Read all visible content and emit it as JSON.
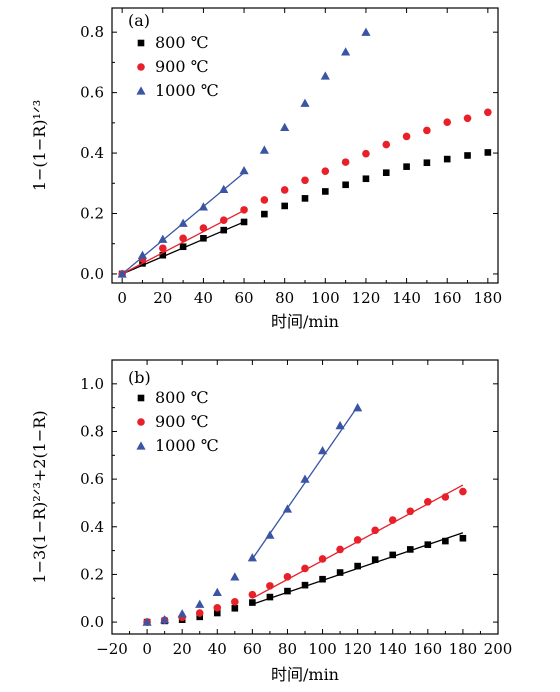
{
  "chart_data": [
    {
      "type": "scatter",
      "panel_label": "(a)",
      "xlabel": "时间/min",
      "ylabel": "1−(1−R)¹ᐟ³",
      "xlim": [
        -5,
        185
      ],
      "ylim": [
        -0.03,
        0.88
      ],
      "xticks": [
        0,
        20,
        40,
        60,
        80,
        100,
        120,
        140,
        160,
        180
      ],
      "yticks": [
        0.0,
        0.2,
        0.4,
        0.6,
        0.8
      ],
      "ytick_labels": [
        "0.0",
        "0.2",
        "0.4",
        "0.6",
        "0.8"
      ],
      "legend_position": "top-left",
      "series": [
        {
          "name": "800 ℃",
          "marker": "square",
          "color": "#000000",
          "x": [
            0,
            10,
            20,
            30,
            40,
            50,
            60,
            70,
            80,
            90,
            100,
            110,
            120,
            130,
            140,
            150,
            160,
            170,
            180
          ],
          "y": [
            0.0,
            0.035,
            0.062,
            0.09,
            0.118,
            0.145,
            0.172,
            0.198,
            0.225,
            0.25,
            0.273,
            0.295,
            0.315,
            0.335,
            0.355,
            0.368,
            0.38,
            0.392,
            0.402
          ],
          "fit": [
            [
              0,
              0.0
            ],
            [
              60,
              0.172
            ]
          ]
        },
        {
          "name": "900 ℃",
          "marker": "circle",
          "color": "#e8202a",
          "x": [
            0,
            10,
            20,
            30,
            40,
            50,
            60,
            70,
            80,
            90,
            100,
            110,
            120,
            130,
            140,
            150,
            160,
            170,
            180
          ],
          "y": [
            0.0,
            0.05,
            0.085,
            0.118,
            0.152,
            0.178,
            0.212,
            0.245,
            0.278,
            0.31,
            0.34,
            0.37,
            0.398,
            0.428,
            0.455,
            0.475,
            0.502,
            0.515,
            0.535
          ],
          "fit": [
            [
              0,
              0.0
            ],
            [
              60,
              0.21
            ]
          ]
        },
        {
          "name": "1000 ℃",
          "marker": "triangle",
          "color": "#3a55a4",
          "x": [
            0,
            10,
            20,
            30,
            40,
            50,
            60,
            70,
            80,
            90,
            100,
            110,
            120
          ],
          "y": [
            0.0,
            0.062,
            0.115,
            0.168,
            0.222,
            0.28,
            0.342,
            0.41,
            0.485,
            0.565,
            0.655,
            0.735,
            0.8
          ],
          "fit": [
            [
              0,
              0.0
            ],
            [
              60,
              0.335
            ]
          ]
        }
      ]
    },
    {
      "type": "scatter",
      "panel_label": "(b)",
      "xlabel": "时间/min",
      "ylabel": "1−3(1−R)²ᐟ³+2(1−R)",
      "xlim": [
        -20,
        200
      ],
      "ylim": [
        -0.05,
        1.1
      ],
      "xticks": [
        -20,
        0,
        20,
        40,
        60,
        80,
        100,
        120,
        140,
        160,
        180,
        200
      ],
      "yticks": [
        0.0,
        0.2,
        0.4,
        0.6,
        0.8,
        1.0
      ],
      "ytick_labels": [
        "0.0",
        "0.2",
        "0.4",
        "0.6",
        "0.8",
        "1.0"
      ],
      "legend_position": "top-left",
      "series": [
        {
          "name": "800 ℃",
          "marker": "square",
          "color": "#000000",
          "x": [
            0,
            10,
            20,
            30,
            40,
            50,
            60,
            70,
            80,
            90,
            100,
            110,
            120,
            130,
            140,
            150,
            160,
            170,
            180
          ],
          "y": [
            0.0,
            0.005,
            0.01,
            0.022,
            0.038,
            0.058,
            0.082,
            0.105,
            0.13,
            0.155,
            0.18,
            0.208,
            0.235,
            0.262,
            0.282,
            0.305,
            0.325,
            0.34,
            0.352
          ],
          "fit": [
            [
              60,
              0.075
            ],
            [
              180,
              0.375
            ]
          ]
        },
        {
          "name": "900 ℃",
          "marker": "circle",
          "color": "#e8202a",
          "x": [
            0,
            10,
            20,
            30,
            40,
            50,
            60,
            70,
            80,
            90,
            100,
            110,
            120,
            130,
            140,
            150,
            160,
            170,
            180
          ],
          "y": [
            0.0,
            0.008,
            0.02,
            0.038,
            0.06,
            0.085,
            0.115,
            0.152,
            0.19,
            0.225,
            0.265,
            0.305,
            0.345,
            0.385,
            0.428,
            0.465,
            0.505,
            0.525,
            0.548
          ],
          "fit": [
            [
              60,
              0.1
            ],
            [
              180,
              0.575
            ]
          ]
        },
        {
          "name": "1000 ℃",
          "marker": "triangle",
          "color": "#3a55a4",
          "x": [
            0,
            10,
            20,
            30,
            40,
            50,
            60,
            70,
            80,
            90,
            100,
            110,
            120
          ],
          "y": [
            0.0,
            0.01,
            0.035,
            0.075,
            0.125,
            0.19,
            0.27,
            0.365,
            0.475,
            0.6,
            0.72,
            0.825,
            0.9
          ],
          "fit": [
            [
              60,
              0.265
            ],
            [
              120,
              0.905
            ]
          ]
        }
      ]
    }
  ]
}
